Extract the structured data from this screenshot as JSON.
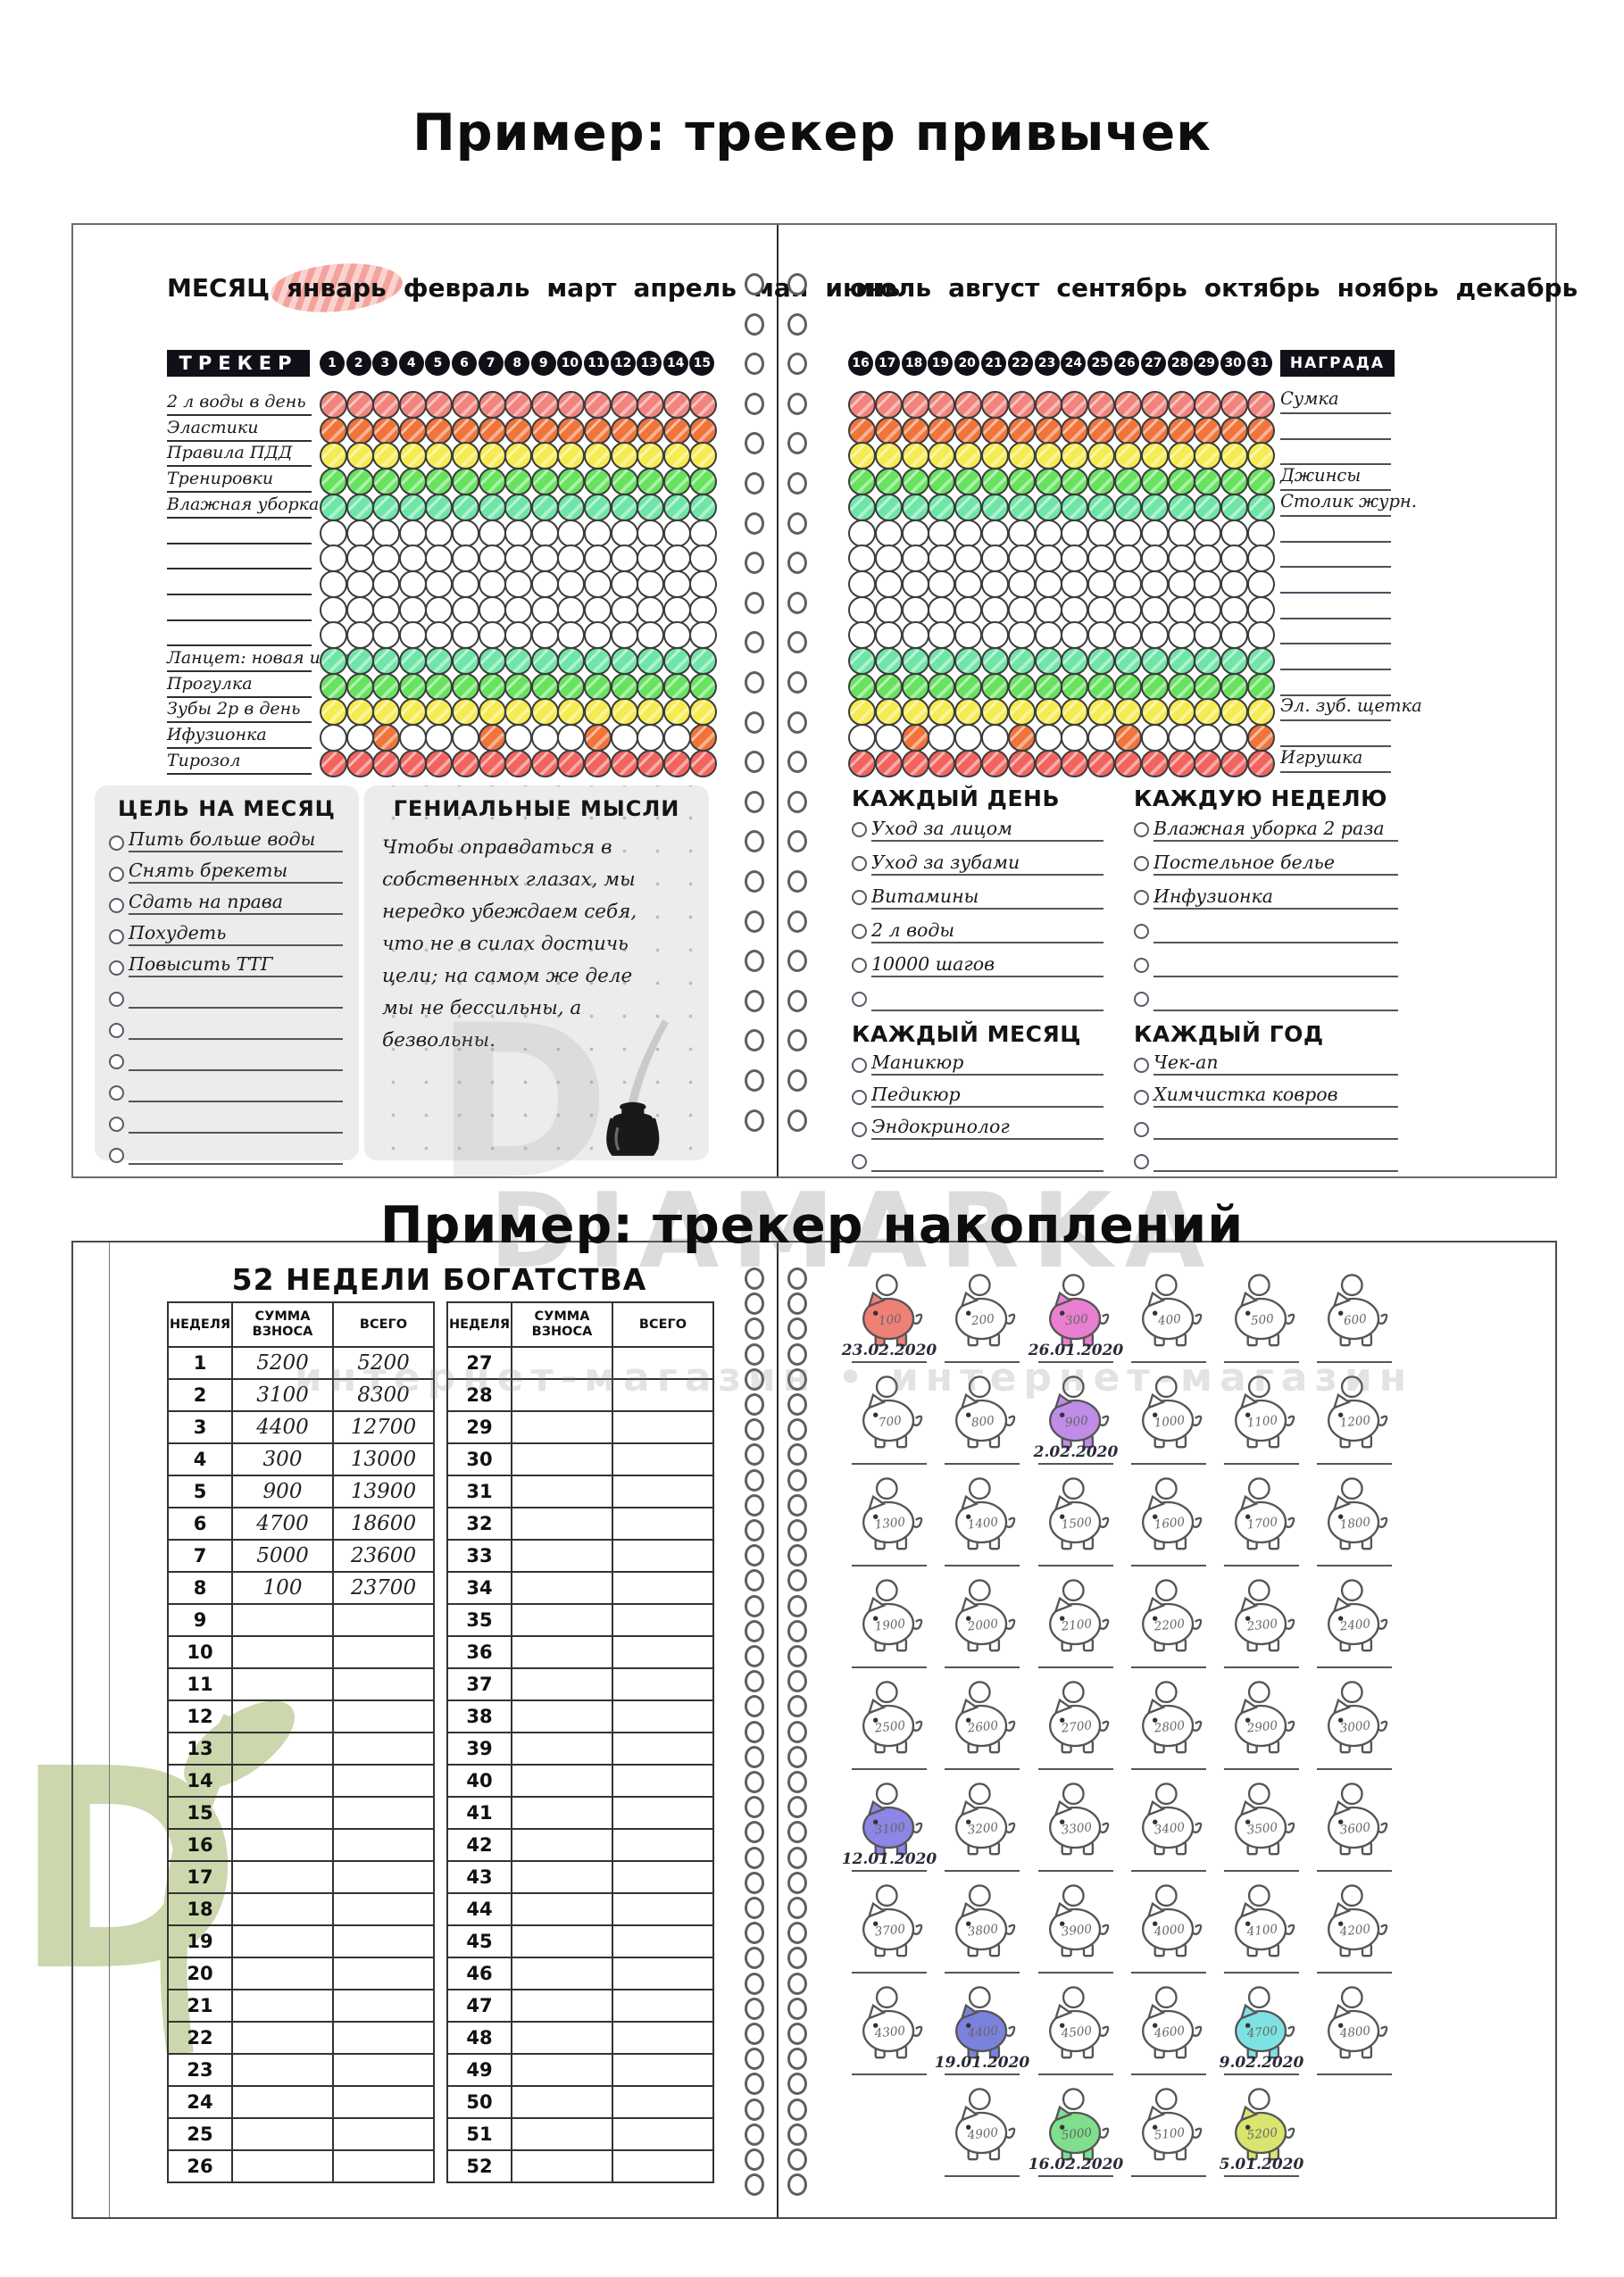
{
  "titles": {
    "habit": "Пример: трекер привычек",
    "savings": "Пример: трекер накоплений"
  },
  "watermark": {
    "brand": "DIAMARKA",
    "shop": "интернет-магазин • интернет-магазин",
    "letter": "D"
  },
  "habit": {
    "month_label": "МЕСЯЦ",
    "months_left": [
      "январь",
      "февраль",
      "март",
      "апрель",
      "май",
      "июнь"
    ],
    "months_right": [
      "июль",
      "август",
      "сентябрь",
      "октябрь",
      "ноябрь",
      "декабрь"
    ],
    "highlighted_month": "январь",
    "tracker_label": "ТРЕКЕР",
    "award_label": "НАГРАДА",
    "days_left": [
      1,
      2,
      3,
      4,
      5,
      6,
      7,
      8,
      9,
      10,
      11,
      12,
      13,
      14,
      15
    ],
    "days_right": [
      16,
      17,
      18,
      19,
      20,
      21,
      22,
      23,
      24,
      25,
      26,
      27,
      28,
      29,
      30,
      31
    ],
    "palette": {
      "red": "#f2837d",
      "red2": "#f2655f",
      "orange": "#f2743b",
      "yellow": "#f6ec51",
      "green": "#67e35f",
      "mint": "#6fe6a8",
      "white": "#ffffff"
    },
    "rows": [
      {
        "label": "2 л воды в день",
        "color": "red",
        "award": "Сумка"
      },
      {
        "label": "Эластики",
        "color": "orange",
        "award": ""
      },
      {
        "label": "Правила ПДД",
        "color": "yellow",
        "award": ""
      },
      {
        "label": "Тренировки",
        "color": "green",
        "award": "Джинсы"
      },
      {
        "label": "Влажная уборка",
        "color": "mint",
        "award": "Столик журн."
      },
      {
        "label": "",
        "color": "white",
        "award": ""
      },
      {
        "label": "",
        "color": "white",
        "award": ""
      },
      {
        "label": "",
        "color": "white",
        "award": ""
      },
      {
        "label": "",
        "color": "white",
        "award": ""
      },
      {
        "label": "",
        "color": "white",
        "award": ""
      },
      {
        "label": "Ланцет: новая игла",
        "color": "mint",
        "award": ""
      },
      {
        "label": "Прогулка",
        "color": "green",
        "award": ""
      },
      {
        "label": "Зубы 2р в день",
        "color": "yellow",
        "award": "Эл. зуб. щетка"
      },
      {
        "label": "Ифузионка",
        "color": "spot",
        "award": "",
        "spots_left": [
          3,
          7,
          11,
          15
        ],
        "spots_right": [
          18,
          22,
          26,
          31
        ]
      },
      {
        "label": "Тирозол",
        "color": "red2",
        "award": "Игрушка"
      }
    ],
    "goal": {
      "title": "ЦЕЛЬ НА МЕСЯЦ",
      "items": [
        "Пить больше воды",
        "Снять брекеты",
        "Сдать на права",
        "Похудеть",
        "Повысить ТТГ",
        "",
        "",
        "",
        "",
        "",
        ""
      ]
    },
    "thoughts": {
      "title": "ГЕНИАЛЬНЫЕ МЫСЛИ",
      "text": "Чтобы оправдаться в собственных глазах, мы нередко убеждаем себя, что не в силах достичь цели; на самом же деле мы не бессильны, а безвольны."
    },
    "every_day": {
      "title": "КАЖДЫЙ ДЕНЬ",
      "items": [
        "Уход за лицом",
        "Уход за зубами",
        "Витамины",
        "2 л воды",
        "10000 шагов",
        ""
      ]
    },
    "every_week": {
      "title": "КАЖДУЮ НЕДЕЛЮ",
      "items": [
        "Влажная уборка 2 раза",
        "Постельное белье",
        "Инфузионка",
        "",
        "",
        ""
      ]
    },
    "every_month": {
      "title": "КАЖДЫЙ МЕСЯЦ",
      "items": [
        "Маникюр",
        "Педикюр",
        "Эндокринолог",
        ""
      ]
    },
    "every_year": {
      "title": "КАЖДЫЙ ГОД",
      "items": [
        "Чек-ап",
        "Химчистка ковров",
        "",
        ""
      ]
    }
  },
  "savings": {
    "title": "52 НЕДЕЛИ БОГАТСТВА",
    "headers": [
      "НЕДЕЛЯ",
      "СУММА ВЗНОСА",
      "ВСЕГО"
    ],
    "rows_left": [
      [
        1,
        "5200",
        "5200"
      ],
      [
        2,
        "3100",
        "8300"
      ],
      [
        3,
        "4400",
        "12700"
      ],
      [
        4,
        "300",
        "13000"
      ],
      [
        5,
        "900",
        "13900"
      ],
      [
        6,
        "4700",
        "18600"
      ],
      [
        7,
        "5000",
        "23600"
      ],
      [
        8,
        "100",
        "23700"
      ],
      [
        9,
        "",
        ""
      ],
      [
        10,
        "",
        ""
      ],
      [
        11,
        "",
        ""
      ],
      [
        12,
        "",
        ""
      ],
      [
        13,
        "",
        ""
      ],
      [
        14,
        "",
        ""
      ],
      [
        15,
        "",
        ""
      ],
      [
        16,
        "",
        ""
      ],
      [
        17,
        "",
        ""
      ],
      [
        18,
        "",
        ""
      ],
      [
        19,
        "",
        ""
      ],
      [
        20,
        "",
        ""
      ],
      [
        21,
        "",
        ""
      ],
      [
        22,
        "",
        ""
      ],
      [
        23,
        "",
        ""
      ],
      [
        24,
        "",
        ""
      ],
      [
        25,
        "",
        ""
      ],
      [
        26,
        "",
        ""
      ]
    ],
    "rows_right": [
      [
        27,
        "",
        ""
      ],
      [
        28,
        "",
        ""
      ],
      [
        29,
        "",
        ""
      ],
      [
        30,
        "",
        ""
      ],
      [
        31,
        "",
        ""
      ],
      [
        32,
        "",
        ""
      ],
      [
        33,
        "",
        ""
      ],
      [
        34,
        "",
        ""
      ],
      [
        35,
        "",
        ""
      ],
      [
        36,
        "",
        ""
      ],
      [
        37,
        "",
        ""
      ],
      [
        38,
        "",
        ""
      ],
      [
        39,
        "",
        ""
      ],
      [
        40,
        "",
        ""
      ],
      [
        41,
        "",
        ""
      ],
      [
        42,
        "",
        ""
      ],
      [
        43,
        "",
        ""
      ],
      [
        44,
        "",
        ""
      ],
      [
        45,
        "",
        ""
      ],
      [
        46,
        "",
        ""
      ],
      [
        47,
        "",
        ""
      ],
      [
        48,
        "",
        ""
      ],
      [
        49,
        "",
        ""
      ],
      [
        50,
        "",
        ""
      ],
      [
        51,
        "",
        ""
      ],
      [
        52,
        "",
        ""
      ]
    ],
    "pigs": [
      [
        100,
        "#ef8076",
        "23.02.2020"
      ],
      [
        200,
        null,
        null
      ],
      [
        300,
        "#e87fd0",
        "26.01.2020"
      ],
      [
        400,
        null,
        null
      ],
      [
        500,
        null,
        null
      ],
      [
        600,
        null,
        null
      ],
      [
        700,
        null,
        null
      ],
      [
        800,
        null,
        null
      ],
      [
        900,
        "#bf8ce8",
        "2.02.2020"
      ],
      [
        1000,
        null,
        null
      ],
      [
        1100,
        null,
        null
      ],
      [
        1200,
        null,
        null
      ],
      [
        1300,
        null,
        null
      ],
      [
        1400,
        null,
        null
      ],
      [
        1500,
        null,
        null
      ],
      [
        1600,
        null,
        null
      ],
      [
        1700,
        null,
        null
      ],
      [
        1800,
        null,
        null
      ],
      [
        1900,
        null,
        null
      ],
      [
        2000,
        null,
        null
      ],
      [
        2100,
        null,
        null
      ],
      [
        2200,
        null,
        null
      ],
      [
        2300,
        null,
        null
      ],
      [
        2400,
        null,
        null
      ],
      [
        2500,
        null,
        null
      ],
      [
        2600,
        null,
        null
      ],
      [
        2700,
        null,
        null
      ],
      [
        2800,
        null,
        null
      ],
      [
        2900,
        null,
        null
      ],
      [
        3000,
        null,
        null
      ],
      [
        3100,
        "#8d86e6",
        "12.01.2020"
      ],
      [
        3200,
        null,
        null
      ],
      [
        3300,
        null,
        null
      ],
      [
        3400,
        null,
        null
      ],
      [
        3500,
        null,
        null
      ],
      [
        3600,
        null,
        null
      ],
      [
        3700,
        null,
        null
      ],
      [
        3800,
        null,
        null
      ],
      [
        3900,
        null,
        null
      ],
      [
        4000,
        null,
        null
      ],
      [
        4100,
        null,
        null
      ],
      [
        4200,
        null,
        null
      ],
      [
        4300,
        null,
        null
      ],
      [
        4400,
        "#7b82dd",
        "19.01.2020"
      ],
      [
        4500,
        null,
        null
      ],
      [
        4600,
        null,
        null
      ],
      [
        4700,
        "#7fe2e2",
        "9.02.2020"
      ],
      [
        4800,
        null,
        null
      ],
      [
        4900,
        null,
        null
      ],
      [
        5000,
        "#7fdf8d",
        "16.02.2020"
      ],
      [
        5100,
        null,
        null
      ],
      [
        5200,
        "#d9e56e",
        "5.01.2020"
      ]
    ]
  }
}
